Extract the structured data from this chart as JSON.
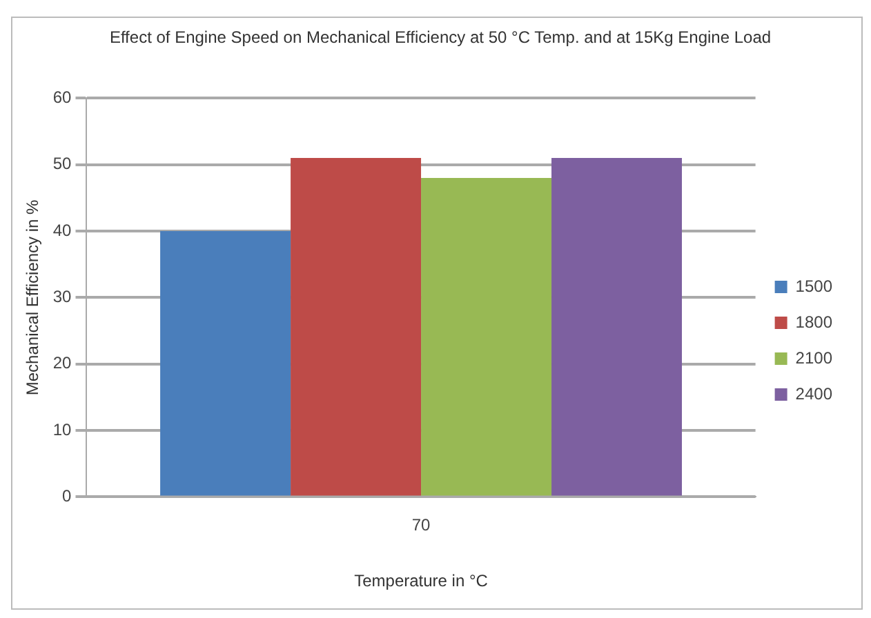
{
  "chart_data": {
    "type": "bar",
    "title": "Effect of Engine Speed on Mechanical Efficiency at 50 °C Temp. and at 15Kg Engine Load",
    "xlabel": "Temperature in °C",
    "ylabel": "Mechanical Efficiency in %",
    "categories": [
      "70"
    ],
    "series": [
      {
        "name": "1500",
        "color": "#4a7ebb",
        "values": [
          40
        ]
      },
      {
        "name": "1800",
        "color": "#be4b48",
        "values": [
          51
        ]
      },
      {
        "name": "2100",
        "color": "#98b954",
        "values": [
          48
        ]
      },
      {
        "name": "2400",
        "color": "#7d60a0",
        "values": [
          51
        ]
      }
    ],
    "ylim": [
      0,
      60
    ],
    "yticks": [
      0,
      10,
      20,
      30,
      40,
      50,
      60
    ],
    "grid": "y",
    "legend": "right"
  }
}
